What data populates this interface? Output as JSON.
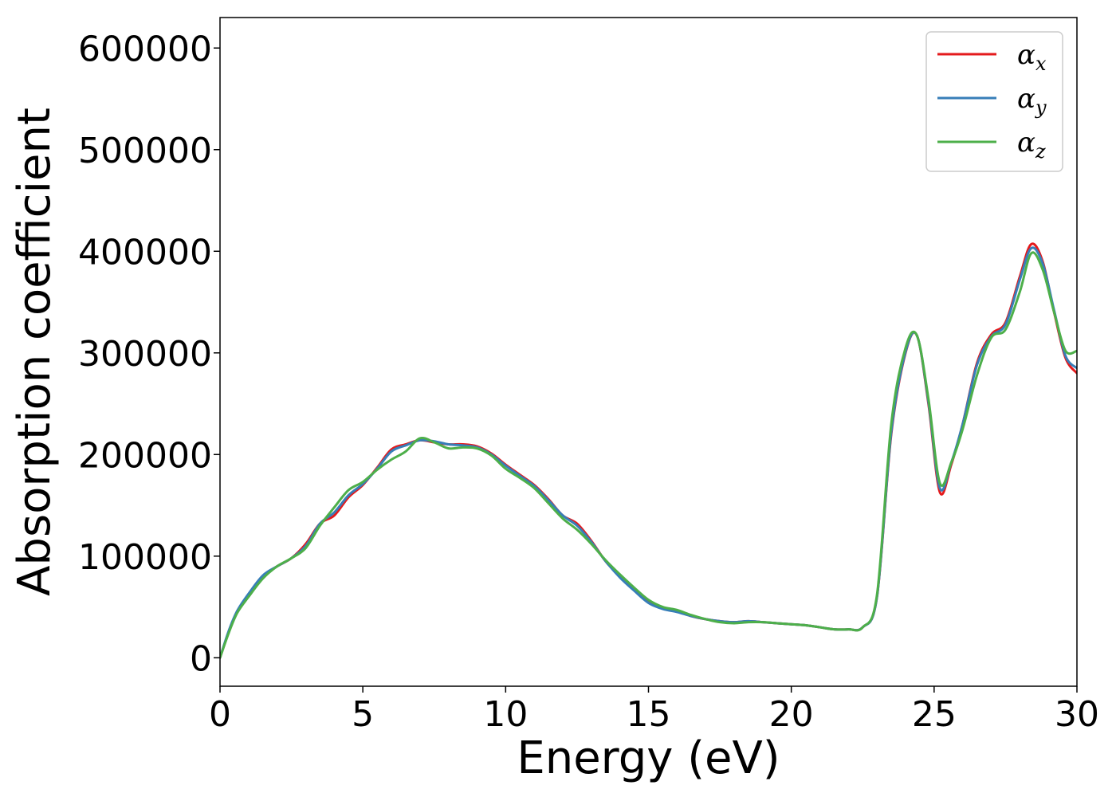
{
  "chart_data": {
    "type": "line",
    "xlabel": "Energy (eV)",
    "ylabel": "Absorption coefficient",
    "xlim": [
      0,
      30
    ],
    "ylim": [
      -28000,
      630000
    ],
    "x_ticks": [
      0,
      5,
      10,
      15,
      20,
      25,
      30
    ],
    "y_ticks": [
      0,
      100000,
      200000,
      300000,
      400000,
      500000,
      600000
    ],
    "legend_position": "top-right",
    "grid": false,
    "series": [
      {
        "name": "αx",
        "symbol": "α",
        "subscript": "x",
        "color": "#e41a1c",
        "points": [
          [
            0,
            0
          ],
          [
            0.3,
            25000
          ],
          [
            0.6,
            45000
          ],
          [
            1,
            62000
          ],
          [
            1.5,
            80000
          ],
          [
            2,
            90000
          ],
          [
            2.5,
            98000
          ],
          [
            3,
            112000
          ],
          [
            3.5,
            132000
          ],
          [
            4,
            140000
          ],
          [
            4.5,
            158000
          ],
          [
            5,
            170000
          ],
          [
            5.5,
            187000
          ],
          [
            6,
            205000
          ],
          [
            6.5,
            210000
          ],
          [
            7,
            214000
          ],
          [
            7.5,
            212000
          ],
          [
            8,
            210000
          ],
          [
            8.5,
            210000
          ],
          [
            9,
            208000
          ],
          [
            9.5,
            201000
          ],
          [
            10,
            190000
          ],
          [
            10.5,
            180000
          ],
          [
            11,
            170000
          ],
          [
            11.5,
            156000
          ],
          [
            12,
            140000
          ],
          [
            12.5,
            132000
          ],
          [
            13,
            115000
          ],
          [
            13.5,
            95000
          ],
          [
            14,
            80000
          ],
          [
            14.5,
            67000
          ],
          [
            15,
            55000
          ],
          [
            15.5,
            49000
          ],
          [
            16,
            46000
          ],
          [
            16.5,
            41000
          ],
          [
            17,
            38000
          ],
          [
            17.5,
            36000
          ],
          [
            18,
            35000
          ],
          [
            18.5,
            36000
          ],
          [
            19,
            35000
          ],
          [
            19.5,
            34000
          ],
          [
            20,
            33000
          ],
          [
            20.5,
            32000
          ],
          [
            21,
            30000
          ],
          [
            21.5,
            28000
          ],
          [
            22,
            28000
          ],
          [
            22.5,
            30000
          ],
          [
            23,
            60000
          ],
          [
            23.5,
            220000
          ],
          [
            24,
            300000
          ],
          [
            24.4,
            317000
          ],
          [
            24.8,
            250000
          ],
          [
            25.2,
            163000
          ],
          [
            25.6,
            190000
          ],
          [
            26,
            230000
          ],
          [
            26.5,
            290000
          ],
          [
            27,
            318000
          ],
          [
            27.5,
            330000
          ],
          [
            28,
            375000
          ],
          [
            28.4,
            407000
          ],
          [
            28.8,
            390000
          ],
          [
            29.2,
            340000
          ],
          [
            29.6,
            295000
          ],
          [
            30,
            280000
          ]
        ]
      },
      {
        "name": "αy",
        "symbol": "α",
        "subscript": "y",
        "color": "#377eb8",
        "points": [
          [
            0,
            0
          ],
          [
            0.3,
            26000
          ],
          [
            0.6,
            46000
          ],
          [
            1,
            63000
          ],
          [
            1.5,
            81000
          ],
          [
            2,
            90000
          ],
          [
            2.5,
            98000
          ],
          [
            3,
            110000
          ],
          [
            3.5,
            132000
          ],
          [
            4,
            143000
          ],
          [
            4.5,
            160000
          ],
          [
            5,
            171000
          ],
          [
            5.5,
            186000
          ],
          [
            6,
            203000
          ],
          [
            6.5,
            209000
          ],
          [
            7,
            214000
          ],
          [
            7.5,
            213000
          ],
          [
            8,
            210000
          ],
          [
            8.5,
            209000
          ],
          [
            9,
            207000
          ],
          [
            9.5,
            200000
          ],
          [
            10,
            189000
          ],
          [
            10.5,
            179000
          ],
          [
            11,
            169000
          ],
          [
            11.5,
            155000
          ],
          [
            12,
            140000
          ],
          [
            12.5,
            130000
          ],
          [
            13,
            114000
          ],
          [
            13.5,
            95000
          ],
          [
            14,
            79000
          ],
          [
            14.5,
            66000
          ],
          [
            15,
            54000
          ],
          [
            15.5,
            48000
          ],
          [
            16,
            45000
          ],
          [
            16.5,
            41000
          ],
          [
            17,
            38000
          ],
          [
            17.5,
            36000
          ],
          [
            18,
            35000
          ],
          [
            18.5,
            36000
          ],
          [
            19,
            35000
          ],
          [
            19.5,
            34000
          ],
          [
            20,
            33000
          ],
          [
            20.5,
            32000
          ],
          [
            21,
            30000
          ],
          [
            21.5,
            28000
          ],
          [
            22,
            28000
          ],
          [
            22.5,
            30000
          ],
          [
            23,
            60000
          ],
          [
            23.5,
            222000
          ],
          [
            24,
            301000
          ],
          [
            24.4,
            317000
          ],
          [
            24.8,
            252000
          ],
          [
            25.2,
            167000
          ],
          [
            25.6,
            192000
          ],
          [
            26,
            230000
          ],
          [
            26.5,
            288000
          ],
          [
            27,
            316000
          ],
          [
            27.5,
            328000
          ],
          [
            28,
            372000
          ],
          [
            28.4,
            403000
          ],
          [
            28.8,
            388000
          ],
          [
            29.2,
            342000
          ],
          [
            29.6,
            297000
          ],
          [
            30,
            285000
          ]
        ]
      },
      {
        "name": "αz",
        "symbol": "α",
        "subscript": "z",
        "color": "#4daf4a",
        "points": [
          [
            0,
            0
          ],
          [
            0.3,
            24000
          ],
          [
            0.6,
            44000
          ],
          [
            1,
            60000
          ],
          [
            1.5,
            78000
          ],
          [
            2,
            90000
          ],
          [
            2.5,
            98000
          ],
          [
            3,
            108000
          ],
          [
            3.5,
            130000
          ],
          [
            4,
            148000
          ],
          [
            4.5,
            165000
          ],
          [
            5,
            173000
          ],
          [
            5.5,
            185000
          ],
          [
            6,
            195000
          ],
          [
            6.5,
            203000
          ],
          [
            7,
            216000
          ],
          [
            7.5,
            212000
          ],
          [
            8,
            206000
          ],
          [
            8.5,
            207000
          ],
          [
            9,
            206000
          ],
          [
            9.5,
            199000
          ],
          [
            10,
            186000
          ],
          [
            10.5,
            177000
          ],
          [
            11,
            167000
          ],
          [
            11.5,
            152000
          ],
          [
            12,
            137000
          ],
          [
            12.5,
            126000
          ],
          [
            13,
            112000
          ],
          [
            13.5,
            96000
          ],
          [
            14,
            82000
          ],
          [
            14.5,
            69000
          ],
          [
            15,
            57000
          ],
          [
            15.5,
            50000
          ],
          [
            16,
            47000
          ],
          [
            16.5,
            42000
          ],
          [
            17,
            38000
          ],
          [
            17.5,
            35000
          ],
          [
            18,
            34000
          ],
          [
            18.5,
            35000
          ],
          [
            19,
            35000
          ],
          [
            19.5,
            34000
          ],
          [
            20,
            33000
          ],
          [
            20.5,
            32000
          ],
          [
            21,
            30000
          ],
          [
            21.5,
            28000
          ],
          [
            22,
            28000
          ],
          [
            22.5,
            30000
          ],
          [
            23,
            62000
          ],
          [
            23.5,
            230000
          ],
          [
            24,
            305000
          ],
          [
            24.4,
            317000
          ],
          [
            24.8,
            255000
          ],
          [
            25.2,
            172000
          ],
          [
            25.6,
            192000
          ],
          [
            26,
            225000
          ],
          [
            26.5,
            278000
          ],
          [
            27,
            315000
          ],
          [
            27.5,
            323000
          ],
          [
            28,
            360000
          ],
          [
            28.4,
            398000
          ],
          [
            28.8,
            382000
          ],
          [
            29.2,
            340000
          ],
          [
            29.6,
            302000
          ],
          [
            30,
            302000
          ]
        ]
      }
    ]
  }
}
